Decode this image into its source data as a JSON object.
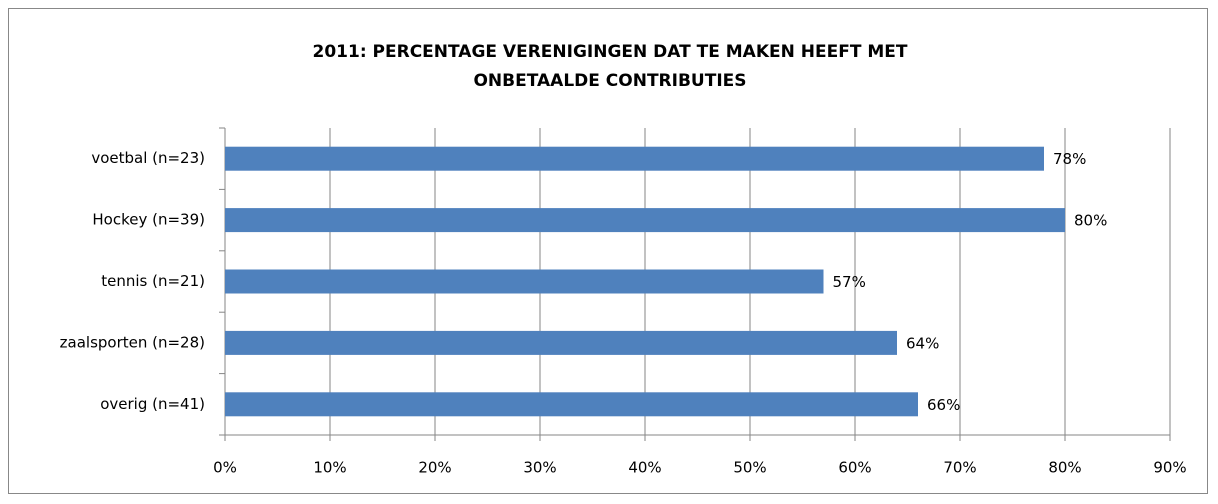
{
  "chart_data": {
    "type": "bar",
    "orientation": "horizontal",
    "title": "2011: PERCENTAGE VERENIGINGEN DAT TE MAKEN HEEFT MET ONBETAALDE CONTRIBUTIES",
    "categories": [
      "voetbal (n=23)",
      "Hockey (n=39)",
      "tennis (n=21)",
      "zaalsporten (n=28)",
      "overig (n=41)"
    ],
    "values": [
      78,
      80,
      57,
      64,
      66
    ],
    "value_labels": [
      "78%",
      "80%",
      "57%",
      "64%",
      "66%"
    ],
    "color": "#4f81bd",
    "xlim": [
      0,
      90
    ],
    "xticks": [
      {
        "value": 0,
        "label": "0%"
      },
      {
        "value": 10,
        "label": "10%"
      },
      {
        "value": 20,
        "label": "20%"
      },
      {
        "value": 30,
        "label": "30%"
      },
      {
        "value": 40,
        "label": "40%"
      },
      {
        "value": 50,
        "label": "50%"
      },
      {
        "value": 60,
        "label": "60%"
      },
      {
        "value": 70,
        "label": "70%"
      },
      {
        "value": 80,
        "label": "80%"
      },
      {
        "value": 90,
        "label": "90%"
      }
    ],
    "grid": true
  }
}
